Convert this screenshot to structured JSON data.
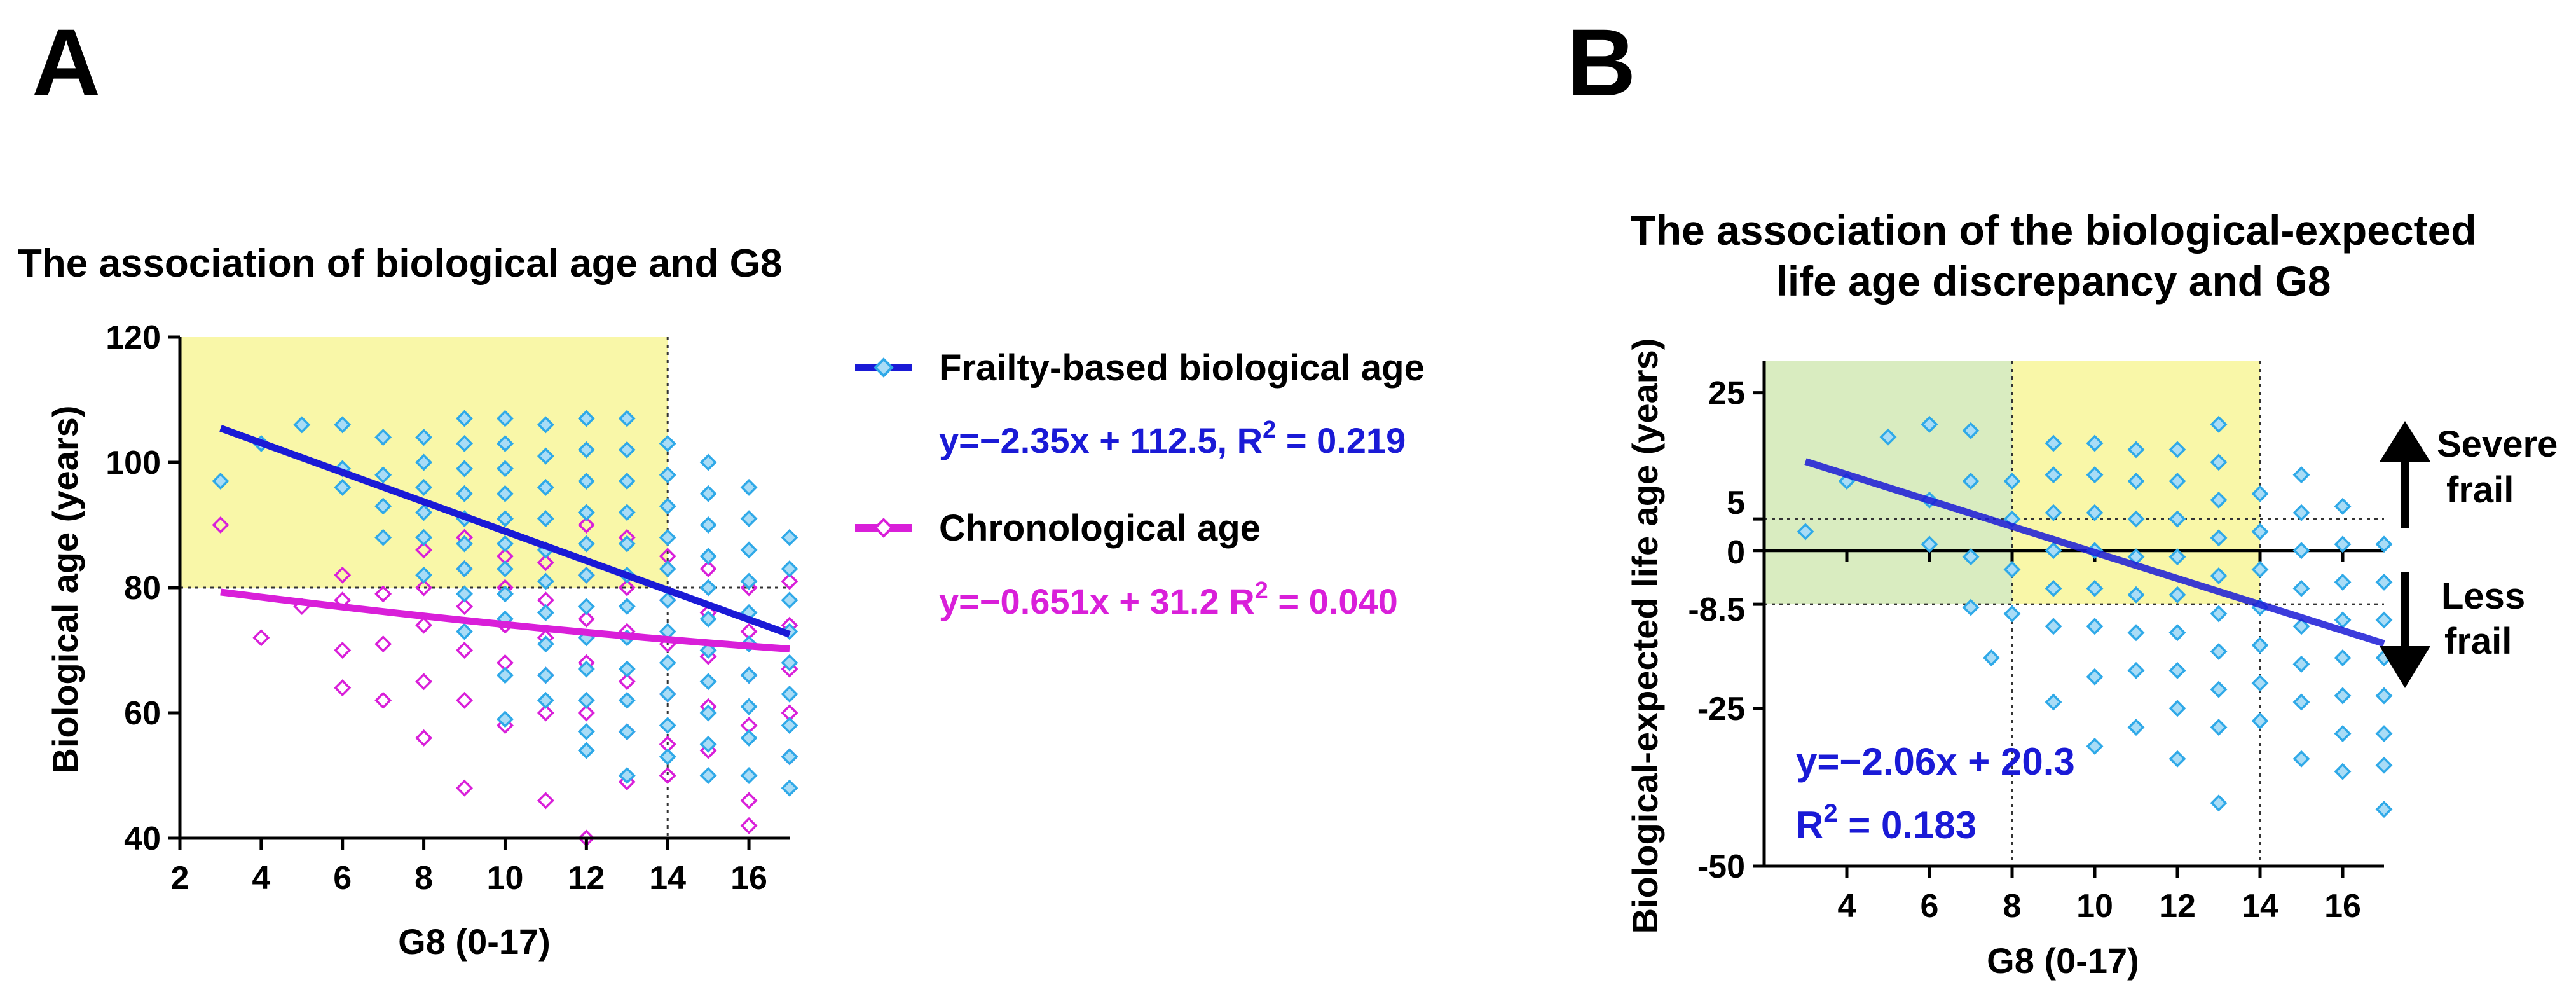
{
  "panels": {
    "a_letter": "A",
    "b_letter": "B"
  },
  "chart_data": [
    {
      "type": "scatter",
      "panel": "A",
      "title": "The association of biological age and G8",
      "xlabel": "G8 (0-17)",
      "ylabel": "Biological age (years)",
      "xlim": [
        2,
        17
      ],
      "ylim": [
        40,
        120
      ],
      "x_ticks": [
        2,
        4,
        6,
        8,
        10,
        12,
        14,
        16
      ],
      "y_ticks": [
        40,
        60,
        80,
        100,
        120
      ],
      "grid": false,
      "shaded_region": {
        "x": [
          2,
          14
        ],
        "y": [
          80,
          120
        ],
        "color": "#f9f7a8"
      },
      "reference_lines": [
        {
          "axis": "y",
          "value": 80
        },
        {
          "axis": "x",
          "value": 14
        }
      ],
      "series": [
        {
          "name": "Frailty-based biological age",
          "marker": "diamond",
          "color": "#2fa9e8",
          "fill": "#a9dcf6",
          "line_color": "#1a1ad6",
          "fit": {
            "slope": -2.35,
            "intercept": 112.5,
            "x_range": [
              3,
              17
            ]
          },
          "equation": "y=−2.35x + 112.5, R",
          "r2": "2",
          "r2_value": " = 0.219",
          "points": [
            [
              3,
              97
            ],
            [
              4,
              103
            ],
            [
              5,
              106
            ],
            [
              6,
              106
            ],
            [
              6,
              99
            ],
            [
              6,
              96
            ],
            [
              7,
              104
            ],
            [
              7,
              98
            ],
            [
              7,
              93
            ],
            [
              7,
              88
            ],
            [
              8,
              104
            ],
            [
              8,
              100
            ],
            [
              8,
              96
            ],
            [
              8,
              92
            ],
            [
              8,
              88
            ],
            [
              8,
              82
            ],
            [
              9,
              107
            ],
            [
              9,
              103
            ],
            [
              9,
              99
            ],
            [
              9,
              95
            ],
            [
              9,
              91
            ],
            [
              9,
              87
            ],
            [
              9,
              83
            ],
            [
              9,
              79
            ],
            [
              9,
              73
            ],
            [
              10,
              107
            ],
            [
              10,
              103
            ],
            [
              10,
              99
            ],
            [
              10,
              95
            ],
            [
              10,
              91
            ],
            [
              10,
              87
            ],
            [
              10,
              83
            ],
            [
              10,
              79
            ],
            [
              10,
              75
            ],
            [
              10,
              66
            ],
            [
              10,
              59
            ],
            [
              11,
              106
            ],
            [
              11,
              101
            ],
            [
              11,
              96
            ],
            [
              11,
              91
            ],
            [
              11,
              86
            ],
            [
              11,
              81
            ],
            [
              11,
              76
            ],
            [
              11,
              71
            ],
            [
              11,
              66
            ],
            [
              11,
              62
            ],
            [
              12,
              107
            ],
            [
              12,
              102
            ],
            [
              12,
              97
            ],
            [
              12,
              92
            ],
            [
              12,
              87
            ],
            [
              12,
              82
            ],
            [
              12,
              77
            ],
            [
              12,
              72
            ],
            [
              12,
              67
            ],
            [
              12,
              62
            ],
            [
              12,
              57
            ],
            [
              12,
              54
            ],
            [
              13,
              107
            ],
            [
              13,
              102
            ],
            [
              13,
              97
            ],
            [
              13,
              92
            ],
            [
              13,
              87
            ],
            [
              13,
              82
            ],
            [
              13,
              77
            ],
            [
              13,
              72
            ],
            [
              13,
              67
            ],
            [
              13,
              62
            ],
            [
              13,
              57
            ],
            [
              13,
              50
            ],
            [
              14,
              103
            ],
            [
              14,
              98
            ],
            [
              14,
              93
            ],
            [
              14,
              88
            ],
            [
              14,
              83
            ],
            [
              14,
              78
            ],
            [
              14,
              73
            ],
            [
              14,
              68
            ],
            [
              14,
              63
            ],
            [
              14,
              58
            ],
            [
              14,
              53
            ],
            [
              15,
              100
            ],
            [
              15,
              95
            ],
            [
              15,
              90
            ],
            [
              15,
              85
            ],
            [
              15,
              80
            ],
            [
              15,
              75
            ],
            [
              15,
              70
            ],
            [
              15,
              65
            ],
            [
              15,
              60
            ],
            [
              15,
              55
            ],
            [
              15,
              50
            ],
            [
              16,
              96
            ],
            [
              16,
              91
            ],
            [
              16,
              86
            ],
            [
              16,
              81
            ],
            [
              16,
              76
            ],
            [
              16,
              71
            ],
            [
              16,
              66
            ],
            [
              16,
              61
            ],
            [
              16,
              56
            ],
            [
              16,
              50
            ],
            [
              17,
              88
            ],
            [
              17,
              83
            ],
            [
              17,
              78
            ],
            [
              17,
              73
            ],
            [
              17,
              68
            ],
            [
              17,
              63
            ],
            [
              17,
              58
            ],
            [
              17,
              53
            ],
            [
              17,
              48
            ]
          ]
        },
        {
          "name": "Chronological age",
          "marker": "diamond",
          "color": "#d91fd9",
          "fill": "none",
          "line_color": "#d91fd9",
          "fit": {
            "slope": -0.651,
            "intercept": 31.2,
            "x_range": [
              3,
              17
            ]
          },
          "equation": "y=−0.651x + 31.2 R",
          "r2": "2",
          "r2_value": " = 0.040",
          "points": [
            [
              3,
              90
            ],
            [
              4,
              72
            ],
            [
              5,
              77
            ],
            [
              6,
              82
            ],
            [
              6,
              78
            ],
            [
              6,
              64
            ],
            [
              6,
              70
            ],
            [
              7,
              79
            ],
            [
              7,
              71
            ],
            [
              7,
              62
            ],
            [
              8,
              86
            ],
            [
              8,
              80
            ],
            [
              8,
              74
            ],
            [
              8,
              65
            ],
            [
              8,
              56
            ],
            [
              9,
              88
            ],
            [
              9,
              83
            ],
            [
              9,
              77
            ],
            [
              9,
              70
            ],
            [
              9,
              62
            ],
            [
              9,
              48
            ],
            [
              10,
              85
            ],
            [
              10,
              80
            ],
            [
              10,
              74
            ],
            [
              10,
              68
            ],
            [
              10,
              58
            ],
            [
              11,
              84
            ],
            [
              11,
              78
            ],
            [
              11,
              72
            ],
            [
              11,
              66
            ],
            [
              11,
              60
            ],
            [
              11,
              46
            ],
            [
              12,
              90
            ],
            [
              12,
              82
            ],
            [
              12,
              75
            ],
            [
              12,
              68
            ],
            [
              12,
              60
            ],
            [
              12,
              40
            ],
            [
              13,
              88
            ],
            [
              13,
              80
            ],
            [
              13,
              73
            ],
            [
              13,
              65
            ],
            [
              13,
              57
            ],
            [
              13,
              49
            ],
            [
              14,
              85
            ],
            [
              14,
              78
            ],
            [
              14,
              71
            ],
            [
              14,
              63
            ],
            [
              14,
              55
            ],
            [
              14,
              50
            ],
            [
              15,
              83
            ],
            [
              15,
              76
            ],
            [
              15,
              69
            ],
            [
              15,
              61
            ],
            [
              15,
              54
            ],
            [
              16,
              80
            ],
            [
              16,
              73
            ],
            [
              16,
              66
            ],
            [
              16,
              58
            ],
            [
              16,
              46
            ],
            [
              16,
              42
            ],
            [
              17,
              81
            ],
            [
              17,
              74
            ],
            [
              17,
              67
            ],
            [
              17,
              60
            ],
            [
              17,
              53
            ]
          ]
        }
      ]
    },
    {
      "type": "scatter",
      "panel": "B",
      "title_line1": "The association of the biological-expected",
      "title_line2": "life age discrepancy and G8",
      "xlabel": "G8 (0-17)",
      "ylabel": "Biological-expected life age (years)",
      "xlim": [
        2,
        17
      ],
      "ylim": [
        -50,
        30
      ],
      "x_ticks": [
        4,
        6,
        8,
        10,
        12,
        14,
        16
      ],
      "y_ticks": [
        -50,
        -25,
        -8.5,
        0,
        5,
        25
      ],
      "y_tick_labels": [
        "-50",
        "-25",
        "-8.5",
        "0",
        "5",
        "25"
      ],
      "grid": false,
      "shaded_regions": [
        {
          "x": [
            2,
            8
          ],
          "y": [
            -8.5,
            30
          ],
          "color": "#d9ecc0"
        },
        {
          "x": [
            8,
            14
          ],
          "y": [
            -8.5,
            30
          ],
          "color": "#f9f7a8"
        }
      ],
      "reference_lines": [
        {
          "axis": "y",
          "value": 5
        },
        {
          "axis": "y",
          "value": -8.5
        },
        {
          "axis": "x",
          "value": 8
        },
        {
          "axis": "x",
          "value": 14
        }
      ],
      "fit": {
        "slope": -2.06,
        "intercept": 20.3,
        "x_range": [
          3,
          17
        ],
        "color": "#1a1ad6"
      },
      "equation": "y=−2.06x + 20.3",
      "r2_prefix": "R",
      "r2": "2",
      "r2_value": " = 0.183",
      "annotation_up": [
        "Severe",
        "frail"
      ],
      "annotation_down": [
        "Less",
        "frail"
      ],
      "marker": "diamond",
      "color": "#2fa9e8",
      "fill": "#a9dcf6",
      "points": [
        [
          3,
          3
        ],
        [
          4,
          11
        ],
        [
          5,
          18
        ],
        [
          6,
          20
        ],
        [
          6,
          8
        ],
        [
          6,
          1
        ],
        [
          7,
          19
        ],
        [
          7,
          -9
        ],
        [
          7,
          11
        ],
        [
          7,
          -1
        ],
        [
          7.5,
          -17
        ],
        [
          8,
          11
        ],
        [
          8,
          5
        ],
        [
          8,
          -3
        ],
        [
          8,
          -10
        ],
        [
          9,
          17
        ],
        [
          9,
          12
        ],
        [
          9,
          6
        ],
        [
          9,
          0
        ],
        [
          9,
          -6
        ],
        [
          9,
          -12
        ],
        [
          9,
          -24
        ],
        [
          10,
          17
        ],
        [
          10,
          12
        ],
        [
          10,
          6
        ],
        [
          10,
          0
        ],
        [
          10,
          -6
        ],
        [
          10,
          -12
        ],
        [
          10,
          -20
        ],
        [
          10,
          -31
        ],
        [
          11,
          16
        ],
        [
          11,
          11
        ],
        [
          11,
          5
        ],
        [
          11,
          -1
        ],
        [
          11,
          -7
        ],
        [
          11,
          -13
        ],
        [
          11,
          -19
        ],
        [
          11,
          -28
        ],
        [
          12,
          16
        ],
        [
          12,
          11
        ],
        [
          12,
          5
        ],
        [
          12,
          -1
        ],
        [
          12,
          -7
        ],
        [
          12,
          -13
        ],
        [
          12,
          -19
        ],
        [
          12,
          -25
        ],
        [
          12,
          -33
        ],
        [
          13,
          20
        ],
        [
          13,
          14
        ],
        [
          13,
          8
        ],
        [
          13,
          2
        ],
        [
          13,
          -4
        ],
        [
          13,
          -10
        ],
        [
          13,
          -16
        ],
        [
          13,
          -22
        ],
        [
          13,
          -28
        ],
        [
          13,
          -40
        ],
        [
          14,
          9
        ],
        [
          14,
          3
        ],
        [
          14,
          -3
        ],
        [
          14,
          -9
        ],
        [
          14,
          -15
        ],
        [
          14,
          -21
        ],
        [
          14,
          -27
        ],
        [
          15,
          12
        ],
        [
          15,
          6
        ],
        [
          15,
          0
        ],
        [
          15,
          -6
        ],
        [
          15,
          -12
        ],
        [
          15,
          -18
        ],
        [
          15,
          -24
        ],
        [
          15,
          -33
        ],
        [
          16,
          7
        ],
        [
          16,
          1
        ],
        [
          16,
          -5
        ],
        [
          16,
          -11
        ],
        [
          16,
          -17
        ],
        [
          16,
          -23
        ],
        [
          16,
          -29
        ],
        [
          16,
          -35
        ],
        [
          17,
          1
        ],
        [
          17,
          -5
        ],
        [
          17,
          -11
        ],
        [
          17,
          -17
        ],
        [
          17,
          -23
        ],
        [
          17,
          -29
        ],
        [
          17,
          -34
        ],
        [
          17,
          -41
        ]
      ]
    }
  ]
}
